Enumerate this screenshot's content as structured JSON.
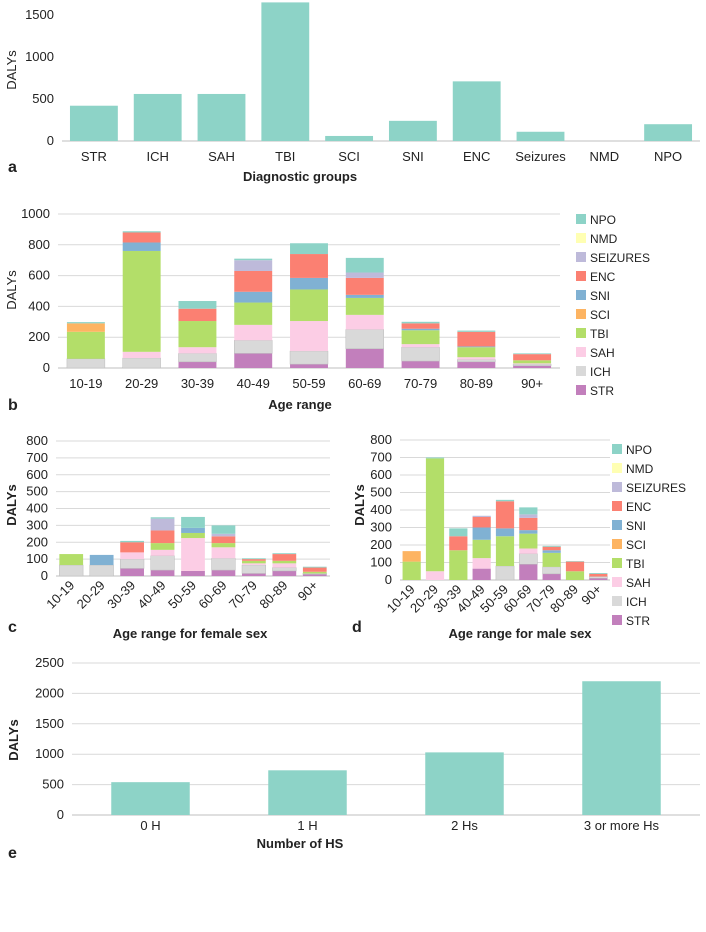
{
  "chart_data": [
    {
      "panel": "a",
      "type": "bar",
      "title": "",
      "xlabel": "Diagnostic groups",
      "ylabel": "DALYs",
      "categories": [
        "STR",
        "ICH",
        "SAH",
        "TBI",
        "SCI",
        "SNI",
        "ENC",
        "Seizures",
        "NMD",
        "NPO"
      ],
      "values": [
        420,
        560,
        560,
        1650,
        60,
        240,
        710,
        110,
        0,
        200
      ],
      "ylim": [
        0,
        1500
      ],
      "yticks": [
        0,
        500,
        1000,
        1500
      ],
      "grid": false,
      "color": "#8dd3c7"
    },
    {
      "panel": "b",
      "type": "bar",
      "stacked": true,
      "xlabel": "Age range",
      "ylabel": "DALYs",
      "categories": [
        "10-19",
        "20-29",
        "30-39",
        "40-49",
        "50-59",
        "60-69",
        "70-79",
        "80-89",
        "90+"
      ],
      "ylim": [
        0,
        1000
      ],
      "yticks": [
        0,
        200,
        400,
        600,
        800,
        1000
      ],
      "grid": true,
      "legend": "right",
      "series": [
        {
          "name": "STR",
          "color": "#c27fbc",
          "values": [
            0,
            0,
            40,
            95,
            25,
            125,
            45,
            40,
            15
          ]
        },
        {
          "name": "ICH",
          "color": "#d9d9d9",
          "values": [
            60,
            65,
            55,
            85,
            85,
            125,
            90,
            15,
            10
          ]
        },
        {
          "name": "SAH",
          "color": "#fccde5",
          "values": [
            0,
            40,
            40,
            100,
            195,
            95,
            20,
            15,
            5
          ]
        },
        {
          "name": "TBI",
          "color": "#b3de69",
          "values": [
            175,
            655,
            170,
            145,
            205,
            110,
            90,
            65,
            20
          ]
        },
        {
          "name": "SCI",
          "color": "#fdb462",
          "values": [
            55,
            0,
            0,
            0,
            0,
            0,
            0,
            0,
            0
          ]
        },
        {
          "name": "SNI",
          "color": "#80b1d3",
          "values": [
            0,
            55,
            0,
            70,
            75,
            20,
            10,
            5,
            0
          ]
        },
        {
          "name": "ENC",
          "color": "#fb8072",
          "values": [
            0,
            65,
            80,
            135,
            155,
            110,
            35,
            95,
            40
          ]
        },
        {
          "name": "SEIZURES",
          "color": "#bebada",
          "values": [
            0,
            0,
            0,
            70,
            0,
            35,
            0,
            0,
            0
          ]
        },
        {
          "name": "NMD",
          "color": "#ffffb3",
          "values": [
            0,
            0,
            0,
            0,
            0,
            0,
            0,
            0,
            0
          ]
        },
        {
          "name": "NPO",
          "color": "#8dd3c7",
          "values": [
            8,
            8,
            50,
            10,
            70,
            95,
            10,
            8,
            5
          ]
        }
      ]
    },
    {
      "panel": "c",
      "type": "bar",
      "stacked": true,
      "xlabel": "Age range for female sex",
      "ylabel": "DALYs",
      "categories": [
        "10-19",
        "20-29",
        "30-39",
        "40-49",
        "50-59",
        "60-69",
        "70-79",
        "80-89",
        "90+"
      ],
      "ylim": [
        0,
        800
      ],
      "yticks": [
        0,
        100,
        200,
        300,
        400,
        500,
        600,
        700,
        800
      ],
      "grid": true,
      "series": [
        {
          "name": "STR",
          "values": [
            0,
            0,
            45,
            35,
            30,
            35,
            15,
            30,
            10
          ]
        },
        {
          "name": "ICH",
          "values": [
            65,
            65,
            55,
            85,
            0,
            70,
            50,
            20,
            5
          ]
        },
        {
          "name": "SAH",
          "values": [
            0,
            0,
            40,
            35,
            195,
            65,
            10,
            25,
            0
          ]
        },
        {
          "name": "TBI",
          "values": [
            65,
            0,
            0,
            40,
            30,
            25,
            15,
            15,
            10
          ]
        },
        {
          "name": "SCI",
          "values": [
            0,
            0,
            0,
            0,
            0,
            0,
            0,
            0,
            0
          ]
        },
        {
          "name": "SNI",
          "values": [
            0,
            60,
            0,
            0,
            30,
            0,
            0,
            0,
            0
          ]
        },
        {
          "name": "ENC",
          "values": [
            0,
            0,
            60,
            75,
            0,
            40,
            10,
            40,
            25
          ]
        },
        {
          "name": "SEIZURES",
          "values": [
            0,
            0,
            0,
            70,
            0,
            15,
            0,
            0,
            0
          ]
        },
        {
          "name": "NMD",
          "values": [
            0,
            0,
            0,
            0,
            0,
            0,
            0,
            0,
            0
          ]
        },
        {
          "name": "NPO",
          "values": [
            0,
            0,
            8,
            8,
            65,
            50,
            5,
            5,
            5
          ]
        }
      ]
    },
    {
      "panel": "d",
      "type": "bar",
      "stacked": true,
      "xlabel": "Age range for male sex",
      "ylabel": "DALYs",
      "categories": [
        "10-19",
        "20-29",
        "30-39",
        "40-49",
        "50-59",
        "60-69",
        "70-79",
        "80-89",
        "90+"
      ],
      "ylim": [
        0,
        800
      ],
      "yticks": [
        0,
        100,
        200,
        300,
        400,
        500,
        600,
        700,
        800
      ],
      "grid": true,
      "legend": "right",
      "series": [
        {
          "name": "STR",
          "values": [
            0,
            0,
            0,
            65,
            0,
            90,
            35,
            0,
            10
          ]
        },
        {
          "name": "ICH",
          "values": [
            0,
            0,
            0,
            0,
            80,
            60,
            40,
            0,
            10
          ]
        },
        {
          "name": "SAH",
          "values": [
            0,
            50,
            0,
            60,
            0,
            30,
            0,
            0,
            0
          ]
        },
        {
          "name": "TBI",
          "values": [
            105,
            645,
            170,
            105,
            170,
            85,
            80,
            50,
            0
          ]
        },
        {
          "name": "SCI",
          "values": [
            60,
            0,
            0,
            0,
            0,
            0,
            0,
            0,
            0
          ]
        },
        {
          "name": "SNI",
          "values": [
            0,
            0,
            0,
            70,
            45,
            20,
            15,
            0,
            0
          ]
        },
        {
          "name": "ENC",
          "values": [
            0,
            0,
            80,
            60,
            155,
            70,
            20,
            55,
            15
          ]
        },
        {
          "name": "SEIZURES",
          "values": [
            0,
            0,
            0,
            7,
            0,
            20,
            0,
            0,
            0
          ]
        },
        {
          "name": "NMD",
          "values": [
            0,
            0,
            0,
            0,
            0,
            0,
            0,
            0,
            0
          ]
        },
        {
          "name": "NPO",
          "values": [
            0,
            5,
            45,
            0,
            8,
            40,
            5,
            3,
            5
          ]
        }
      ]
    },
    {
      "panel": "e",
      "type": "bar",
      "xlabel": "Number of HS",
      "ylabel": "DALYs",
      "categories": [
        "0 H",
        "1 H",
        "2 Hs",
        "3 or more Hs"
      ],
      "values": [
        540,
        735,
        1030,
        2200
      ],
      "ylim": [
        0,
        2500
      ],
      "yticks": [
        0,
        500,
        1000,
        1500,
        2000,
        2500
      ],
      "grid": true,
      "color": "#8dd3c7"
    }
  ]
}
